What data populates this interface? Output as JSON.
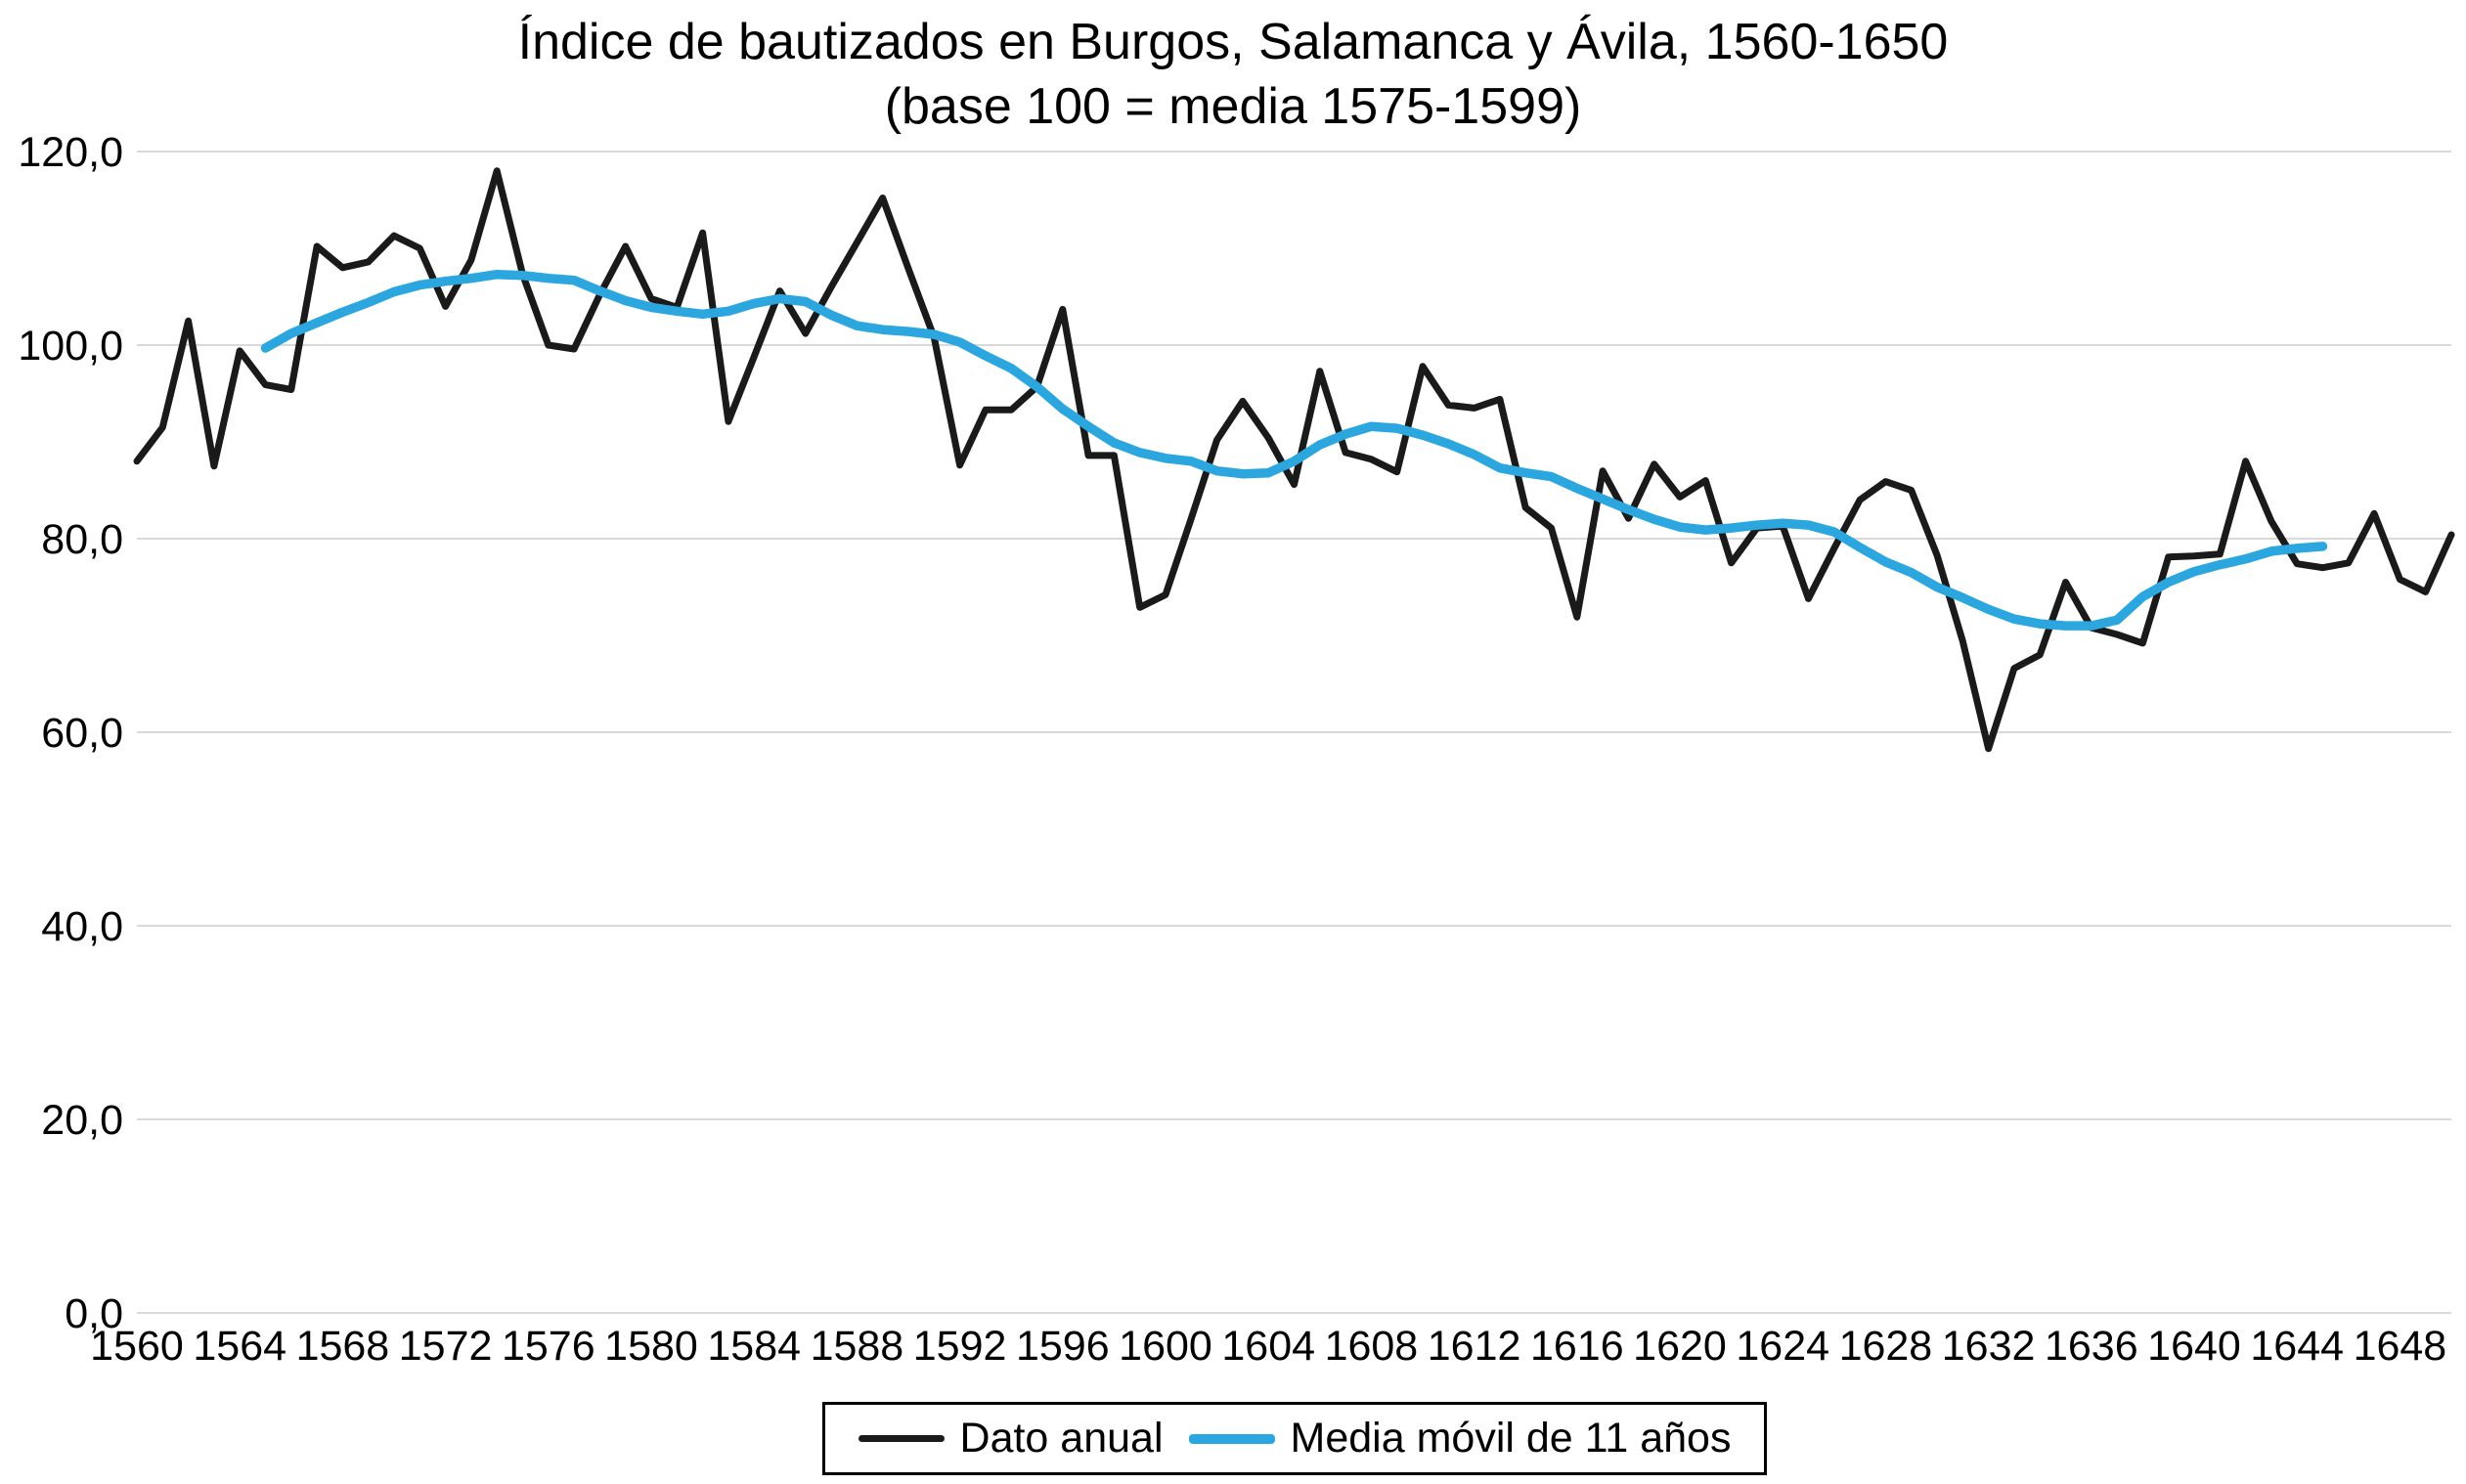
{
  "chart_data": {
    "type": "line",
    "title": "Índice de bautizados en Burgos, Salamanca y Ávila, 1560-1650",
    "subtitle": "(base 100 = media 1575-1599)",
    "xlabel": "",
    "ylabel": "",
    "x_range": [
      1560,
      1650
    ],
    "ylim": [
      0,
      120
    ],
    "grid": "horizontal",
    "gridline_color": "#d9d9d9",
    "legend_position": "bottom-center",
    "y_ticks": [
      {
        "value": 0,
        "label": "0,0"
      },
      {
        "value": 20,
        "label": "20,0"
      },
      {
        "value": 40,
        "label": "40,0"
      },
      {
        "value": 60,
        "label": "60,0"
      },
      {
        "value": 80,
        "label": "80,0"
      },
      {
        "value": 100,
        "label": "100,0"
      },
      {
        "value": 120,
        "label": "120,0"
      }
    ],
    "x_ticks": [
      {
        "value": 1560,
        "label": "1560"
      },
      {
        "value": 1564,
        "label": "1564"
      },
      {
        "value": 1568,
        "label": "1568"
      },
      {
        "value": 1572,
        "label": "1572"
      },
      {
        "value": 1576,
        "label": "1576"
      },
      {
        "value": 1580,
        "label": "1580"
      },
      {
        "value": 1584,
        "label": "1584"
      },
      {
        "value": 1588,
        "label": "1588"
      },
      {
        "value": 1592,
        "label": "1592"
      },
      {
        "value": 1596,
        "label": "1596"
      },
      {
        "value": 1600,
        "label": "1600"
      },
      {
        "value": 1604,
        "label": "1604"
      },
      {
        "value": 1608,
        "label": "1608"
      },
      {
        "value": 1612,
        "label": "1612"
      },
      {
        "value": 1616,
        "label": "1616"
      },
      {
        "value": 1620,
        "label": "1620"
      },
      {
        "value": 1624,
        "label": "1624"
      },
      {
        "value": 1628,
        "label": "1628"
      },
      {
        "value": 1632,
        "label": "1632"
      },
      {
        "value": 1636,
        "label": "1636"
      },
      {
        "value": 1640,
        "label": "1640"
      },
      {
        "value": 1644,
        "label": "1644"
      },
      {
        "value": 1648,
        "label": "1648"
      }
    ],
    "series": [
      {
        "name": "Dato anual",
        "color": "#1a1a1a",
        "stroke_width": 7,
        "start_year": 1560,
        "values": [
          88.0,
          91.5,
          102.5,
          87.5,
          99.4,
          95.9,
          95.4,
          110.2,
          108.0,
          108.6,
          111.3,
          110.0,
          104.0,
          108.8,
          118.0,
          107.3,
          100.0,
          99.6,
          105.2,
          110.2,
          104.8,
          103.9,
          111.6,
          92.1,
          98.8,
          105.6,
          101.2,
          106.0,
          110.6,
          115.2,
          107.9,
          100.8,
          87.6,
          93.3,
          93.3,
          95.7,
          103.7,
          88.6,
          88.6,
          72.9,
          74.2,
          82.1,
          90.2,
          94.2,
          90.4,
          85.6,
          97.3,
          88.9,
          88.2,
          86.9,
          97.8,
          93.8,
          93.5,
          94.4,
          83.2,
          81.1,
          71.9,
          87.0,
          82.1,
          87.7,
          84.3,
          86.0,
          77.5,
          81.1,
          81.3,
          73.8,
          79.0,
          84.0,
          85.9,
          85.0,
          78.3,
          69.4,
          58.3,
          66.6,
          68.0,
          75.5,
          70.8,
          70.1,
          69.2,
          78.1,
          78.2,
          78.4,
          88.0,
          81.8,
          77.4,
          77.0,
          77.5,
          82.6,
          75.8,
          74.5,
          80.4
        ]
      },
      {
        "name": "Media móvil de 11 años",
        "color": "#2ba6de",
        "stroke_width": 9.5,
        "start_year": 1565,
        "values": [
          99.7,
          101.2,
          102.3,
          103.4,
          104.4,
          105.5,
          106.2,
          106.6,
          106.9,
          107.3,
          107.2,
          106.9,
          106.7,
          105.6,
          104.6,
          103.9,
          103.5,
          103.2,
          103.5,
          104.3,
          104.8,
          104.5,
          103.1,
          102.0,
          101.6,
          101.4,
          101.1,
          100.3,
          98.9,
          97.6,
          95.7,
          93.4,
          91.6,
          89.9,
          88.9,
          88.3,
          88.0,
          87.0,
          86.7,
          86.8,
          88.0,
          89.7,
          90.8,
          91.6,
          91.4,
          90.7,
          89.8,
          88.7,
          87.3,
          86.8,
          86.4,
          85.2,
          84.1,
          83.0,
          82.0,
          81.2,
          80.9,
          81.1,
          81.4,
          81.6,
          81.4,
          80.7,
          79.1,
          77.6,
          76.5,
          75.0,
          73.9,
          72.7,
          71.7,
          71.2,
          71.0,
          71.0,
          71.6,
          74.0,
          75.5,
          76.6,
          77.3,
          77.9,
          78.7,
          79.0,
          79.2
        ]
      }
    ]
  },
  "legend": {
    "items": [
      {
        "label": "Dato anual"
      },
      {
        "label": "Media móvil de 11 años"
      }
    ]
  }
}
